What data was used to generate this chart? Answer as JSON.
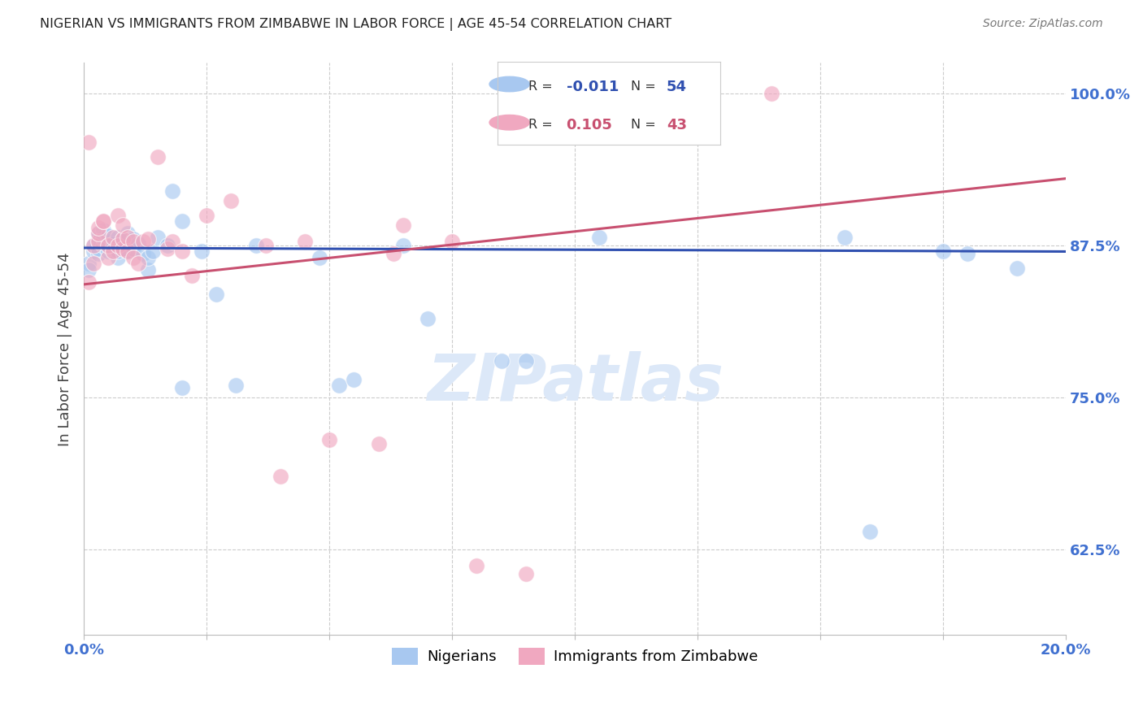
{
  "title": "NIGERIAN VS IMMIGRANTS FROM ZIMBABWE IN LABOR FORCE | AGE 45-54 CORRELATION CHART",
  "source": "Source: ZipAtlas.com",
  "ylabel": "In Labor Force | Age 45-54",
  "xlim": [
    0.0,
    0.2
  ],
  "ylim": [
    0.555,
    1.025
  ],
  "yticks": [
    0.625,
    0.75,
    0.875,
    1.0
  ],
  "ytick_labels": [
    "62.5%",
    "75.0%",
    "87.5%",
    "100.0%"
  ],
  "legend_R1": "-0.011",
  "legend_N1": "54",
  "legend_R2": "0.105",
  "legend_N2": "43",
  "color_nigerian": "#a8c8f0",
  "color_zimbabwe": "#f0a8c0",
  "color_trend_nigerian": "#3050b0",
  "color_trend_zimbabwe": "#c85070",
  "color_axis_text": "#4070d0",
  "color_watermark": "#dce8f8",
  "nigerian_x": [
    0.001,
    0.001,
    0.002,
    0.002,
    0.003,
    0.003,
    0.003,
    0.003,
    0.004,
    0.004,
    0.004,
    0.004,
    0.005,
    0.005,
    0.005,
    0.005,
    0.006,
    0.006,
    0.007,
    0.007,
    0.007,
    0.008,
    0.008,
    0.009,
    0.009,
    0.01,
    0.01,
    0.011,
    0.012,
    0.013,
    0.013,
    0.014,
    0.015,
    0.017,
    0.018,
    0.02,
    0.02,
    0.024,
    0.027,
    0.031,
    0.035,
    0.048,
    0.052,
    0.055,
    0.065,
    0.07,
    0.085,
    0.09,
    0.105,
    0.155,
    0.16,
    0.175,
    0.18,
    0.19
  ],
  "nigerian_y": [
    0.86,
    0.855,
    0.87,
    0.875,
    0.868,
    0.872,
    0.88,
    0.885,
    0.875,
    0.88,
    0.882,
    0.888,
    0.87,
    0.875,
    0.878,
    0.883,
    0.872,
    0.876,
    0.865,
    0.87,
    0.882,
    0.872,
    0.88,
    0.87,
    0.885,
    0.872,
    0.88,
    0.876,
    0.868,
    0.855,
    0.865,
    0.87,
    0.882,
    0.875,
    0.92,
    0.895,
    0.758,
    0.87,
    0.835,
    0.76,
    0.875,
    0.865,
    0.76,
    0.765,
    0.875,
    0.815,
    0.78,
    0.78,
    0.882,
    0.882,
    0.64,
    0.87,
    0.868,
    0.856
  ],
  "zimbabwe_x": [
    0.001,
    0.001,
    0.002,
    0.002,
    0.003,
    0.003,
    0.003,
    0.004,
    0.004,
    0.005,
    0.005,
    0.006,
    0.006,
    0.007,
    0.007,
    0.008,
    0.008,
    0.008,
    0.009,
    0.009,
    0.01,
    0.01,
    0.011,
    0.012,
    0.013,
    0.015,
    0.017,
    0.018,
    0.02,
    0.022,
    0.025,
    0.03,
    0.037,
    0.04,
    0.045,
    0.05,
    0.06,
    0.063,
    0.065,
    0.075,
    0.08,
    0.09,
    0.14
  ],
  "zimbabwe_y": [
    0.845,
    0.96,
    0.86,
    0.875,
    0.878,
    0.885,
    0.89,
    0.895,
    0.895,
    0.865,
    0.875,
    0.87,
    0.882,
    0.875,
    0.9,
    0.872,
    0.88,
    0.892,
    0.87,
    0.882,
    0.865,
    0.878,
    0.86,
    0.878,
    0.88,
    0.948,
    0.872,
    0.878,
    0.87,
    0.85,
    0.9,
    0.912,
    0.875,
    0.685,
    0.878,
    0.715,
    0.712,
    0.868,
    0.892,
    0.878,
    0.612,
    0.605,
    1.0
  ]
}
